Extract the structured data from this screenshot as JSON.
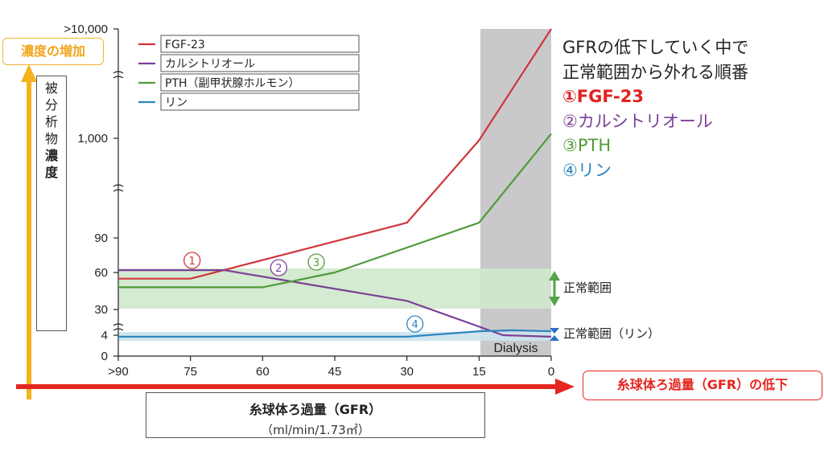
{
  "chart_data": {
    "type": "line",
    "y_axis_label": [
      "被",
      "分",
      "析",
      "物",
      "濃",
      "度"
    ],
    "x_axis": {
      "title": "糸球体ろ過量（GFR）",
      "unit": "（ml/min/1.73㎡）",
      "ticks": [
        ">90",
        "75",
        "60",
        "45",
        "30",
        "15",
        "0"
      ],
      "reversed": true,
      "range": [
        90,
        0
      ]
    },
    "y_axis": {
      "ticks": [
        "0",
        "4",
        "30",
        "60",
        "90",
        "1,000",
        ">10,000"
      ],
      "broken": true
    },
    "series": [
      {
        "name": "FGF-23",
        "color": "#d0353b",
        "x": [
          90,
          75,
          30,
          15,
          0
        ],
        "y": [
          55,
          55,
          130,
          950,
          10000
        ]
      },
      {
        "name": "カルシトリオール",
        "color": "#7b3f98",
        "x": [
          90,
          68,
          30,
          10,
          0
        ],
        "y": [
          62,
          62,
          37,
          4,
          3.7
        ]
      },
      {
        "name": "PTH（副甲状腺ホルモン）",
        "color": "#4f9b3a",
        "x": [
          90,
          60,
          45,
          15,
          0
        ],
        "y": [
          48,
          48,
          60,
          130,
          1100
        ]
      },
      {
        "name": "リン",
        "color": "#2e86c1",
        "x": [
          90,
          30,
          15,
          8,
          0
        ],
        "y": [
          3.7,
          3.7,
          8,
          9,
          8
        ]
      }
    ],
    "bands": [
      {
        "label": "正常範囲",
        "from": 30,
        "to": 65,
        "color": "#cfe8cc"
      },
      {
        "label": "正常範囲（リン）",
        "from": 3,
        "to": 4.5,
        "color": "#cde3ee"
      }
    ],
    "dialysis": {
      "label": "Dialysis",
      "from_gfr": 15,
      "to_gfr": 0
    },
    "markers": [
      {
        "label": "①",
        "gfr": 75,
        "color": "#d0353b"
      },
      {
        "label": "②",
        "gfr": 60,
        "color": "#7b3f98"
      },
      {
        "label": "③",
        "gfr": 48,
        "color": "#4f9b3a"
      },
      {
        "label": "④",
        "gfr": 30,
        "color": "#2e86c1"
      }
    ]
  },
  "annotations": {
    "y_arrow_label": "濃度の増加",
    "x_arrow_label": "糸球体ろ過量（GFR）の低下",
    "side_title_line1": "GFRの低下していく中で",
    "side_title_line2": "正常範囲から外れる順番",
    "order": [
      {
        "text": "①FGF-23",
        "color": "#e0201c",
        "bold": true
      },
      {
        "text": "②カルシトリオール",
        "color": "#7b3f98",
        "bold": false
      },
      {
        "text": "③PTH",
        "color": "#4f9b3a",
        "bold": false
      },
      {
        "text": "④リン",
        "color": "#2e86c1",
        "bold": false
      }
    ],
    "normal_range": "正常範囲",
    "normal_range_phos": "正常範囲（リン）"
  },
  "colors": {
    "x_arrow": "#e52620",
    "y_arrow": "#f5b21a",
    "dialysis_fill": "#c9c9cb"
  }
}
